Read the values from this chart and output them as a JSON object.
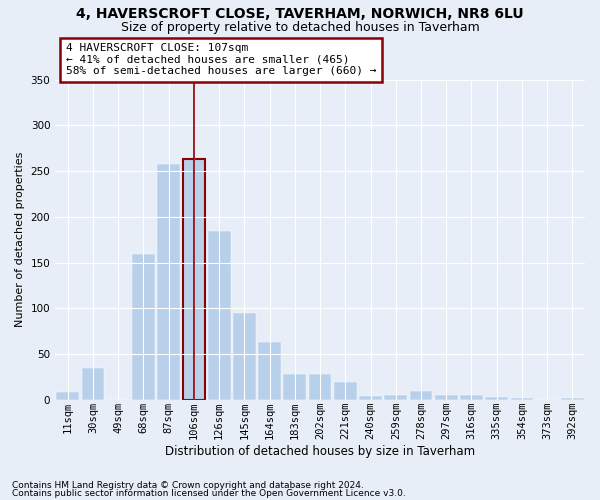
{
  "title1": "4, HAVERSCROFT CLOSE, TAVERHAM, NORWICH, NR8 6LU",
  "title2": "Size of property relative to detached houses in Taverham",
  "xlabel": "Distribution of detached houses by size in Taverham",
  "ylabel": "Number of detached properties",
  "categories": [
    "11sqm",
    "30sqm",
    "49sqm",
    "68sqm",
    "87sqm",
    "106sqm",
    "126sqm",
    "145sqm",
    "164sqm",
    "183sqm",
    "202sqm",
    "221sqm",
    "240sqm",
    "259sqm",
    "278sqm",
    "297sqm",
    "316sqm",
    "335sqm",
    "354sqm",
    "373sqm",
    "392sqm"
  ],
  "values": [
    9,
    35,
    0,
    160,
    258,
    263,
    185,
    95,
    63,
    28,
    28,
    20,
    4,
    5,
    10,
    6,
    5,
    3,
    2,
    0,
    2
  ],
  "bar_color": "#b8d0ea",
  "highlight_bar_index": 5,
  "highlight_color": "#8b0000",
  "annotation_text": "4 HAVERSCROFT CLOSE: 107sqm\n← 41% of detached houses are smaller (465)\n58% of semi-detached houses are larger (660) →",
  "footnote1": "Contains HM Land Registry data © Crown copyright and database right 2024.",
  "footnote2": "Contains public sector information licensed under the Open Government Licence v3.0.",
  "ylim": [
    0,
    350
  ],
  "bg_color": "#e8eef8",
  "grid_color": "#ffffff",
  "title1_fontsize": 10,
  "title2_fontsize": 9,
  "xlabel_fontsize": 8.5,
  "ylabel_fontsize": 8,
  "tick_fontsize": 7.5,
  "footnote_fontsize": 6.5
}
